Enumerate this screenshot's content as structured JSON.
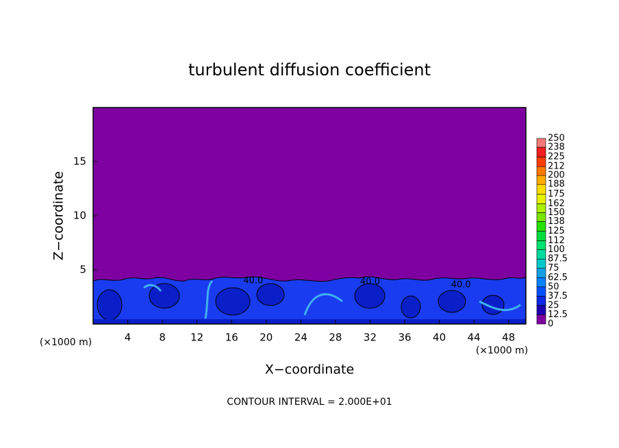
{
  "chart_data": {
    "type": "contour",
    "title": "turbulent diffusion coefficient",
    "x_label": "X−coordinate",
    "y_label": "Z−coordinate",
    "x_unit": "(×1000 m)",
    "y_unit": "(×1000 m)",
    "footer": "CONTOUR INTERVAL = 2.000E+01",
    "xlim": [
      0,
      50
    ],
    "xticks": [
      4,
      8,
      12,
      16,
      20,
      24,
      28,
      32,
      36,
      40,
      44,
      48
    ],
    "ylim": [
      0,
      20
    ],
    "yticks": [
      5,
      10,
      15
    ],
    "levels": [
      0,
      12.5,
      25,
      37.5,
      50,
      62.5,
      75,
      87.5,
      100,
      112,
      125,
      138,
      150,
      162,
      175,
      188,
      200,
      212,
      225,
      238,
      250
    ],
    "colors": [
      "#7f00a0",
      "#1e00b4",
      "#0a28e6",
      "#0050ff",
      "#0a82ff",
      "#14a0e6",
      "#00c8c8",
      "#00dca0",
      "#00e16e",
      "#00dc3c",
      "#28e100",
      "#78e600",
      "#aaf000",
      "#e6f000",
      "#ffdc00",
      "#ffaa00",
      "#ff7800",
      "#ff3c00",
      "#f01e1e",
      "#f07878"
    ],
    "annotations": [
      {
        "text": "40.0",
        "x": 18.5,
        "y": 4.0
      },
      {
        "text": "40.0",
        "x": 32,
        "y": 3.9
      },
      {
        "text": "40.0",
        "x": 42.5,
        "y": 3.6
      }
    ]
  }
}
